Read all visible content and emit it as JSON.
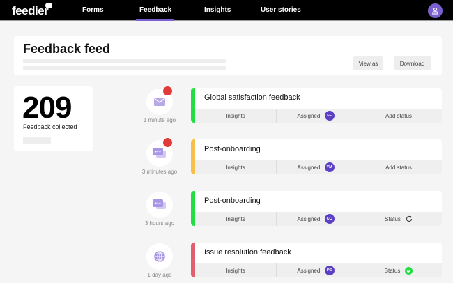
{
  "nav": {
    "logo": "feedier",
    "items": [
      "Forms",
      "Feedback",
      "Insights",
      "User stories"
    ],
    "active": "Feedback",
    "accent": "#7a5fd0"
  },
  "header": {
    "title": "Feedback feed",
    "view_as": "View as",
    "download": "Download"
  },
  "stats": {
    "count": "209",
    "label": "Feedback collected"
  },
  "feed": [
    {
      "title": "Global satisfaction feedback",
      "time": "1 minute ago",
      "icon": "mail-icon",
      "unread": true,
      "accent": "#22dd44",
      "insights": "Insights",
      "assigned_label": "Assigned:",
      "assignee": "FF",
      "status": "Add status",
      "status_icon": ""
    },
    {
      "title": "Post-onboarding",
      "time": "3 minutes ago",
      "icon": "chat-icon",
      "unread": true,
      "accent": "#f6c04a",
      "insights": "Insights",
      "assigned_label": "Assigned:",
      "assignee": "YM",
      "status": "Add status",
      "status_icon": ""
    },
    {
      "title": "Post-onboarding",
      "time": "3 hours ago",
      "icon": "chat-icon",
      "unread": false,
      "accent": "#22dd44",
      "insights": "Insights",
      "assigned_label": "Assigned:",
      "assignee": "CC",
      "status": "Status",
      "status_icon": "in-progress-icon"
    },
    {
      "title": "Issue resolution feedback",
      "time": "1 day ago",
      "icon": "globe-icon",
      "unread": false,
      "accent": "#e06070",
      "insights": "Insights",
      "assigned_label": "Assigned:",
      "assignee": "PS",
      "status": "Status",
      "status_icon": "check-circle-icon"
    }
  ]
}
